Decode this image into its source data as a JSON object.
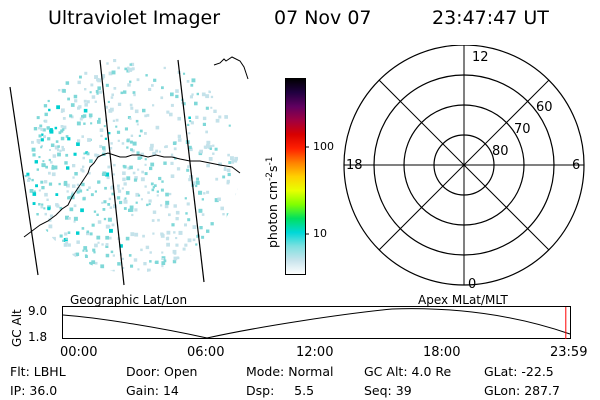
{
  "header": {
    "instrument": "Ultraviolet Imager",
    "date": "07 Nov 07",
    "time": "23:47:47 UT"
  },
  "colorbar": {
    "label": "photon cm",
    "label_sup_1": "-2",
    "label_mid": "s",
    "label_sup_2": "-1",
    "ticks": [
      "100",
      "10"
    ],
    "colors": [
      "#ffffff",
      "#c8e4ec",
      "#7fe0e0",
      "#00d8d8",
      "#00e060",
      "#80ff00",
      "#e8ff00",
      "#ffd000",
      "#ff8000",
      "#ff2000",
      "#d80000",
      "#a00040",
      "#600060",
      "#200040",
      "#000000"
    ]
  },
  "polar_grid": {
    "mlt_labels": {
      "top": "12",
      "left": "18",
      "right": "6",
      "bottom": "0"
    },
    "lat_labels": [
      "60",
      "70",
      "80"
    ]
  },
  "projection_labels": {
    "left": "Geographic Lat/Lon",
    "right": "Apex MLat/MLT"
  },
  "altitude_plot": {
    "axis_title": "GC Alt",
    "y_ticks": [
      "9.0",
      "1.8"
    ],
    "x_ticks": [
      "00:00",
      "06:00",
      "12:00",
      "18:00",
      "23:59"
    ],
    "cursor_hour": 23.8
  },
  "footer": [
    [
      {
        "key": "Flt:",
        "val": "LBHL"
      },
      {
        "key": "Door:",
        "val": "Open"
      },
      {
        "key": "Mode:",
        "val": "Normal"
      },
      {
        "key": "GC Alt:",
        "val": "4.0 Re"
      },
      {
        "key": "GLat:",
        "val": "-22.5"
      }
    ],
    [
      {
        "key": "IP:",
        "val": "36.0"
      },
      {
        "key": "Gain:",
        "val": "14"
      },
      {
        "key": "Dsp:",
        "val": "5.5"
      },
      {
        "key": "Seq:",
        "val": "39"
      },
      {
        "key": "GLon:",
        "val": "287.7"
      }
    ]
  ],
  "style": {
    "accent_cursor": "#ff0000",
    "speckle_main": "#7fd8d8",
    "speckle_light": "#c4e2ea"
  }
}
